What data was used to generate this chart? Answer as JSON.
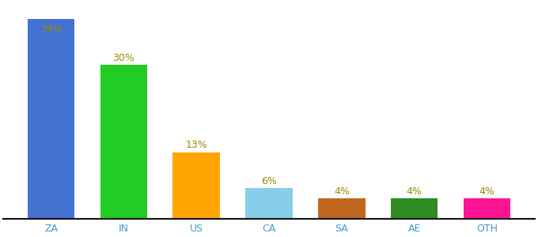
{
  "categories": [
    "ZA",
    "IN",
    "US",
    "CA",
    "SA",
    "AE",
    "OTH"
  ],
  "values": [
    39,
    30,
    13,
    6,
    4,
    4,
    4
  ],
  "labels": [
    "39%",
    "30%",
    "13%",
    "6%",
    "4%",
    "4%",
    "4%"
  ],
  "bar_colors": [
    "#4472d3",
    "#22cc22",
    "#ffa500",
    "#87ceeb",
    "#c06820",
    "#2e8b22",
    "#ff1493"
  ],
  "label_color": "#9a8b00",
  "xlabel_color": "#4499cc",
  "background_color": "#ffffff",
  "ylim": [
    0,
    42
  ],
  "bar_width": 0.65
}
